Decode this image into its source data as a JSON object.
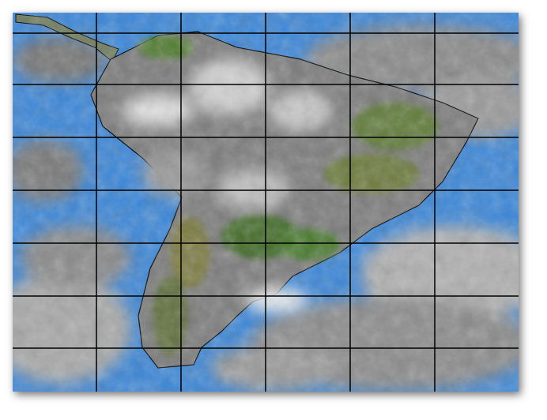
{
  "map": {
    "type": "satellite-infrared-composite",
    "region": "South America",
    "grid": true,
    "political_borders": true,
    "colors": {
      "ocean": "#3a86d8",
      "cloud": "#d8d8d8",
      "land_vegetation": "#4f7a2e",
      "grid_lines": "#000000",
      "borders": "#000000"
    }
  }
}
